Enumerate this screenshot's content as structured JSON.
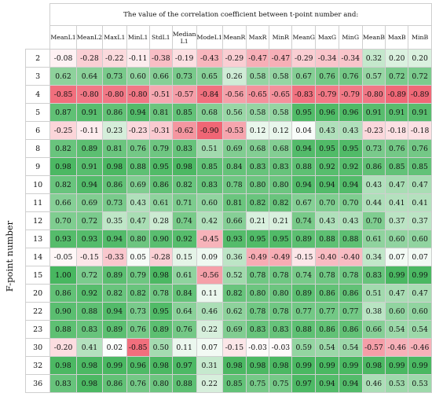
{
  "title": "The value of the correlation coefficient between t-point number and:",
  "ylabel": "F-point number",
  "columns": [
    "MeanL1",
    "MeanL2",
    "MaxL1",
    "MinL1",
    "StdL1",
    "Median L1",
    "ModeL1",
    "MeanR",
    "MaxR",
    "MinR",
    "MeanG",
    "MaxG",
    "MinG",
    "MeanB",
    "MaxB",
    "MinB"
  ],
  "rows": [
    {
      "label": "2",
      "values": [
        "-0.08",
        "-0.28",
        "-0.22",
        "-0.11",
        "-0.38",
        "-0.19",
        "-0.43",
        "-0.29",
        "-0.47",
        "-0.47",
        "-0.29",
        "-0.34",
        "-0.34",
        "0.32",
        "0.20",
        "0.20"
      ]
    },
    {
      "label": "3",
      "values": [
        "0.62",
        "0.64",
        "0.73",
        "0.60",
        "0.66",
        "0.73",
        "0.65",
        "0.26",
        "0.58",
        "0.58",
        "0.67",
        "0.76",
        "0.76",
        "0.57",
        "0.72",
        "0.72"
      ]
    },
    {
      "label": "4",
      "values": [
        "-0.85",
        "-0.80",
        "-0.80",
        "-0.80",
        "-0.51",
        "-0.57",
        "-0.84",
        "-0.56",
        "-0.65",
        "-0.65",
        "-0.83",
        "-0.79",
        "-0.79",
        "-0.80",
        "-0.89",
        "-0.89"
      ]
    },
    {
      "label": "5",
      "values": [
        "0.87",
        "0.91",
        "0.86",
        "0.94",
        "0.81",
        "0.85",
        "0.68",
        "0.56",
        "0.58",
        "0.58",
        "0.95",
        "0.96",
        "0.96",
        "0.91",
        "0.91",
        "0.91"
      ]
    },
    {
      "label": "6",
      "values": [
        "-0.25",
        "-0.11",
        "0.23",
        "-0.23",
        "-0.31",
        "-0.62",
        "-0.90",
        "-0.53",
        "0.12",
        "0.12",
        "0.04",
        "0.43",
        "0.43",
        "-0.23",
        "-0.18",
        "-0.18"
      ]
    },
    {
      "label": "8",
      "values": [
        "0.82",
        "0.89",
        "0.81",
        "0.76",
        "0.79",
        "0.83",
        "0.51",
        "0.69",
        "0.68",
        "0.68",
        "0.94",
        "0.95",
        "0.95",
        "0.73",
        "0.76",
        "0.76"
      ]
    },
    {
      "label": "9",
      "values": [
        "0.98",
        "0.91",
        "0.98",
        "0.88",
        "0.95",
        "0.98",
        "0.85",
        "0.84",
        "0.83",
        "0.83",
        "0.88",
        "0.92",
        "0.92",
        "0.86",
        "0.85",
        "0.85"
      ]
    },
    {
      "label": "10",
      "values": [
        "0.82",
        "0.94",
        "0.86",
        "0.69",
        "0.86",
        "0.82",
        "0.83",
        "0.78",
        "0.80",
        "0.80",
        "0.94",
        "0.94",
        "0.94",
        "0.43",
        "0.47",
        "0.47"
      ]
    },
    {
      "label": "11",
      "values": [
        "0.66",
        "0.69",
        "0.73",
        "0.43",
        "0.61",
        "0.71",
        "0.60",
        "0.81",
        "0.82",
        "0.82",
        "0.67",
        "0.70",
        "0.70",
        "0.44",
        "0.41",
        "0.41"
      ]
    },
    {
      "label": "12",
      "values": [
        "0.70",
        "0.72",
        "0.35",
        "0.47",
        "0.28",
        "0.74",
        "0.42",
        "0.66",
        "0.21",
        "0.21",
        "0.74",
        "0.43",
        "0.43",
        "0.70",
        "0.37",
        "0.37"
      ]
    },
    {
      "label": "13",
      "values": [
        "0.93",
        "0.93",
        "0.94",
        "0.80",
        "0.90",
        "0.92",
        "-0.45",
        "0.93",
        "0.95",
        "0.95",
        "0.89",
        "0.88",
        "0.88",
        "0.61",
        "0.60",
        "0.60"
      ]
    },
    {
      "label": "14",
      "values": [
        "-0.05",
        "-0.15",
        "-0.33",
        "0.05",
        "-0.28",
        "0.15",
        "0.09",
        "0.36",
        "-0.49",
        "-0.49",
        "-0.15",
        "-0.40",
        "-0.40",
        "0.34",
        "0.07",
        "0.07"
      ]
    },
    {
      "label": "15",
      "values": [
        "1.00",
        "0.72",
        "0.89",
        "0.79",
        "0.98",
        "0.61",
        "-0.56",
        "0.52",
        "0.78",
        "0.78",
        "0.74",
        "0.78",
        "0.78",
        "0.83",
        "0.99",
        "0.99"
      ]
    },
    {
      "label": "20",
      "values": [
        "0.86",
        "0.92",
        "0.82",
        "0.82",
        "0.78",
        "0.84",
        "0.11",
        "0.82",
        "0.80",
        "0.80",
        "0.89",
        "0.86",
        "0.86",
        "0.51",
        "0.47",
        "0.47"
      ]
    },
    {
      "label": "22",
      "values": [
        "0.90",
        "0.88",
        "0.94",
        "0.73",
        "0.95",
        "0.64",
        "0.46",
        "0.62",
        "0.78",
        "0.78",
        "0.77",
        "0.77",
        "0.77",
        "0.38",
        "0.60",
        "0.60"
      ]
    },
    {
      "label": "23",
      "values": [
        "0.88",
        "0.83",
        "0.89",
        "0.76",
        "0.89",
        "0.76",
        "0.22",
        "0.69",
        "0.83",
        "0.83",
        "0.88",
        "0.86",
        "0.86",
        "0.66",
        "0.54",
        "0.54"
      ]
    },
    {
      "label": "30",
      "values": [
        "-0.20",
        "0.41",
        "0.02",
        "-0.85",
        "0.50",
        "0.11",
        "0.07",
        "-0.15",
        "-0.03",
        "-0.03",
        "0.59",
        "0.54",
        "0.54",
        "-0.57",
        "-0.46",
        "-0.46"
      ]
    },
    {
      "label": "32",
      "values": [
        "0.98",
        "0.98",
        "0.99",
        "0.96",
        "0.98",
        "0.97",
        "0.31",
        "0.98",
        "0.98",
        "0.98",
        "0.99",
        "0.99",
        "0.99",
        "0.98",
        "0.99",
        "0.99"
      ]
    },
    {
      "label": "36",
      "values": [
        "0.83",
        "0.98",
        "0.86",
        "0.76",
        "0.80",
        "0.88",
        "0.22",
        "0.85",
        "0.75",
        "0.75",
        "0.97",
        "0.94",
        "0.94",
        "0.46",
        "0.53",
        "0.53"
      ]
    }
  ],
  "colors": {
    "positive": "#4cb864",
    "negative": "#ee5a6a",
    "neutral": "#ffffff"
  }
}
